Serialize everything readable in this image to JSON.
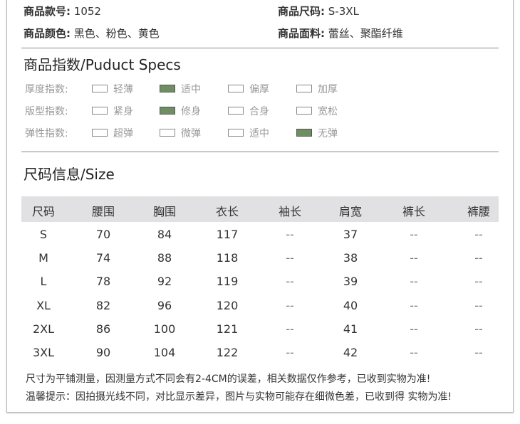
{
  "info": [
    {
      "label": "商品款号:",
      "value": "1052"
    },
    {
      "label": "商品尺码:",
      "value": "S-3XL"
    },
    {
      "label": "商品颜色:",
      "value": "黑色、粉色、黄色"
    },
    {
      "label": "商品面料:",
      "value": "蕾丝、聚酯纤维"
    }
  ],
  "specs": {
    "title": "商品指数/Puduct Specs",
    "accent": "#6f8f63",
    "rows": [
      {
        "label": "厚度指数:",
        "options": [
          "轻薄",
          "适中",
          "偏厚",
          "加厚"
        ],
        "selected": 1
      },
      {
        "label": "版型指数:",
        "options": [
          "紧身",
          "修身",
          "合身",
          "宽松"
        ],
        "selected": 1
      },
      {
        "label": "弹性指数:",
        "options": [
          "超弹",
          "微弹",
          "适中",
          "无弹"
        ],
        "selected": 3
      }
    ]
  },
  "size": {
    "title": "尺码信息/Size",
    "headers": [
      "尺码",
      "腰围",
      "胸围",
      "衣长",
      "袖长",
      "肩宽",
      "裤长",
      "裤腰"
    ],
    "rows": [
      [
        "S",
        "70",
        "84",
        "117",
        "--",
        "37",
        "--",
        "--"
      ],
      [
        "M",
        "74",
        "88",
        "118",
        "--",
        "38",
        "--",
        "--"
      ],
      [
        "L",
        "78",
        "92",
        "119",
        "--",
        "39",
        "--",
        "--"
      ],
      [
        "XL",
        "82",
        "96",
        "120",
        "--",
        "40",
        "--",
        "--"
      ],
      [
        "2XL",
        "86",
        "100",
        "121",
        "--",
        "41",
        "--",
        "--"
      ],
      [
        "3XL",
        "90",
        "104",
        "122",
        "--",
        "42",
        "--",
        "--"
      ]
    ]
  },
  "notes": [
    "尺寸为平铺测量，因测量方式不同会有2-4CM的误差，相关数据仅作参考，已收到实物为准!",
    "温馨提示：因拍摄光线不同，对比显示差异，图片与实物可能存在细微色差，已收到得 实物为准!"
  ]
}
